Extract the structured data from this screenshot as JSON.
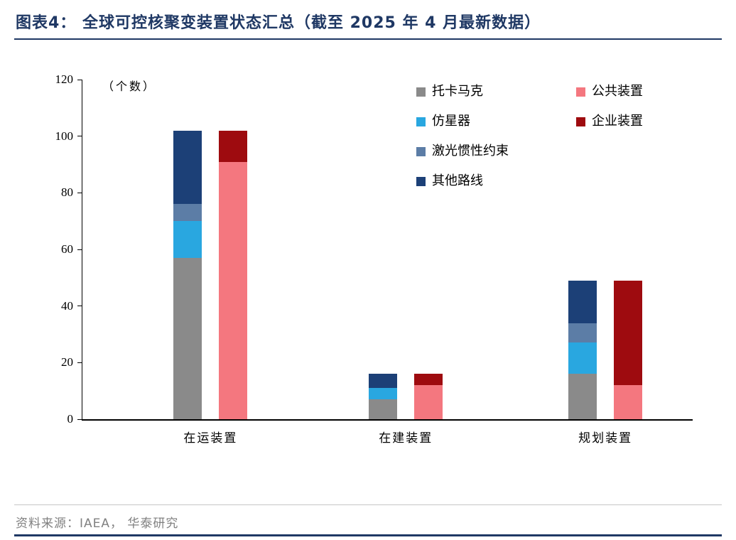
{
  "page": {
    "title": "图表4：  全球可控核聚变装置状态汇总（截至 2025 年 4 月最新数据）",
    "source": "资料来源：IAEA， 华泰研究"
  },
  "colors": {
    "accent": "#1F3864",
    "axis": "#000000",
    "source": "#808080"
  },
  "chart_data": {
    "type": "bar",
    "stacked": true,
    "title": "全球可控核聚变装置状态汇总（截至 2025 年 4 月最新数据）",
    "unit_label": "（个数）",
    "categories": [
      "在运装置",
      "在建装置",
      "规划装置"
    ],
    "ylim": [
      0,
      120
    ],
    "yticks": [
      0,
      20,
      40,
      60,
      80,
      100,
      120
    ],
    "grid": false,
    "legend_position": "top-right",
    "groups": [
      {
        "name": "technology-route",
        "series": [
          {
            "name": "托卡马克",
            "color": "#8A8A8A",
            "values": [
              57,
              7,
              16
            ]
          },
          {
            "name": "仿星器",
            "color": "#29A7E0",
            "values": [
              13,
              4,
              11
            ]
          },
          {
            "name": "激光惯性约束",
            "color": "#5C7DA6",
            "values": [
              6,
              0,
              7
            ]
          },
          {
            "name": "其他路线",
            "color": "#1C4077",
            "values": [
              26,
              5,
              15
            ]
          }
        ]
      },
      {
        "name": "ownership",
        "series": [
          {
            "name": "公共装置",
            "color": "#F4777F",
            "values": [
              91,
              12,
              12
            ]
          },
          {
            "name": "企业装置",
            "color": "#9E0B0F",
            "values": [
              11,
              4,
              37
            ]
          }
        ]
      }
    ]
  }
}
